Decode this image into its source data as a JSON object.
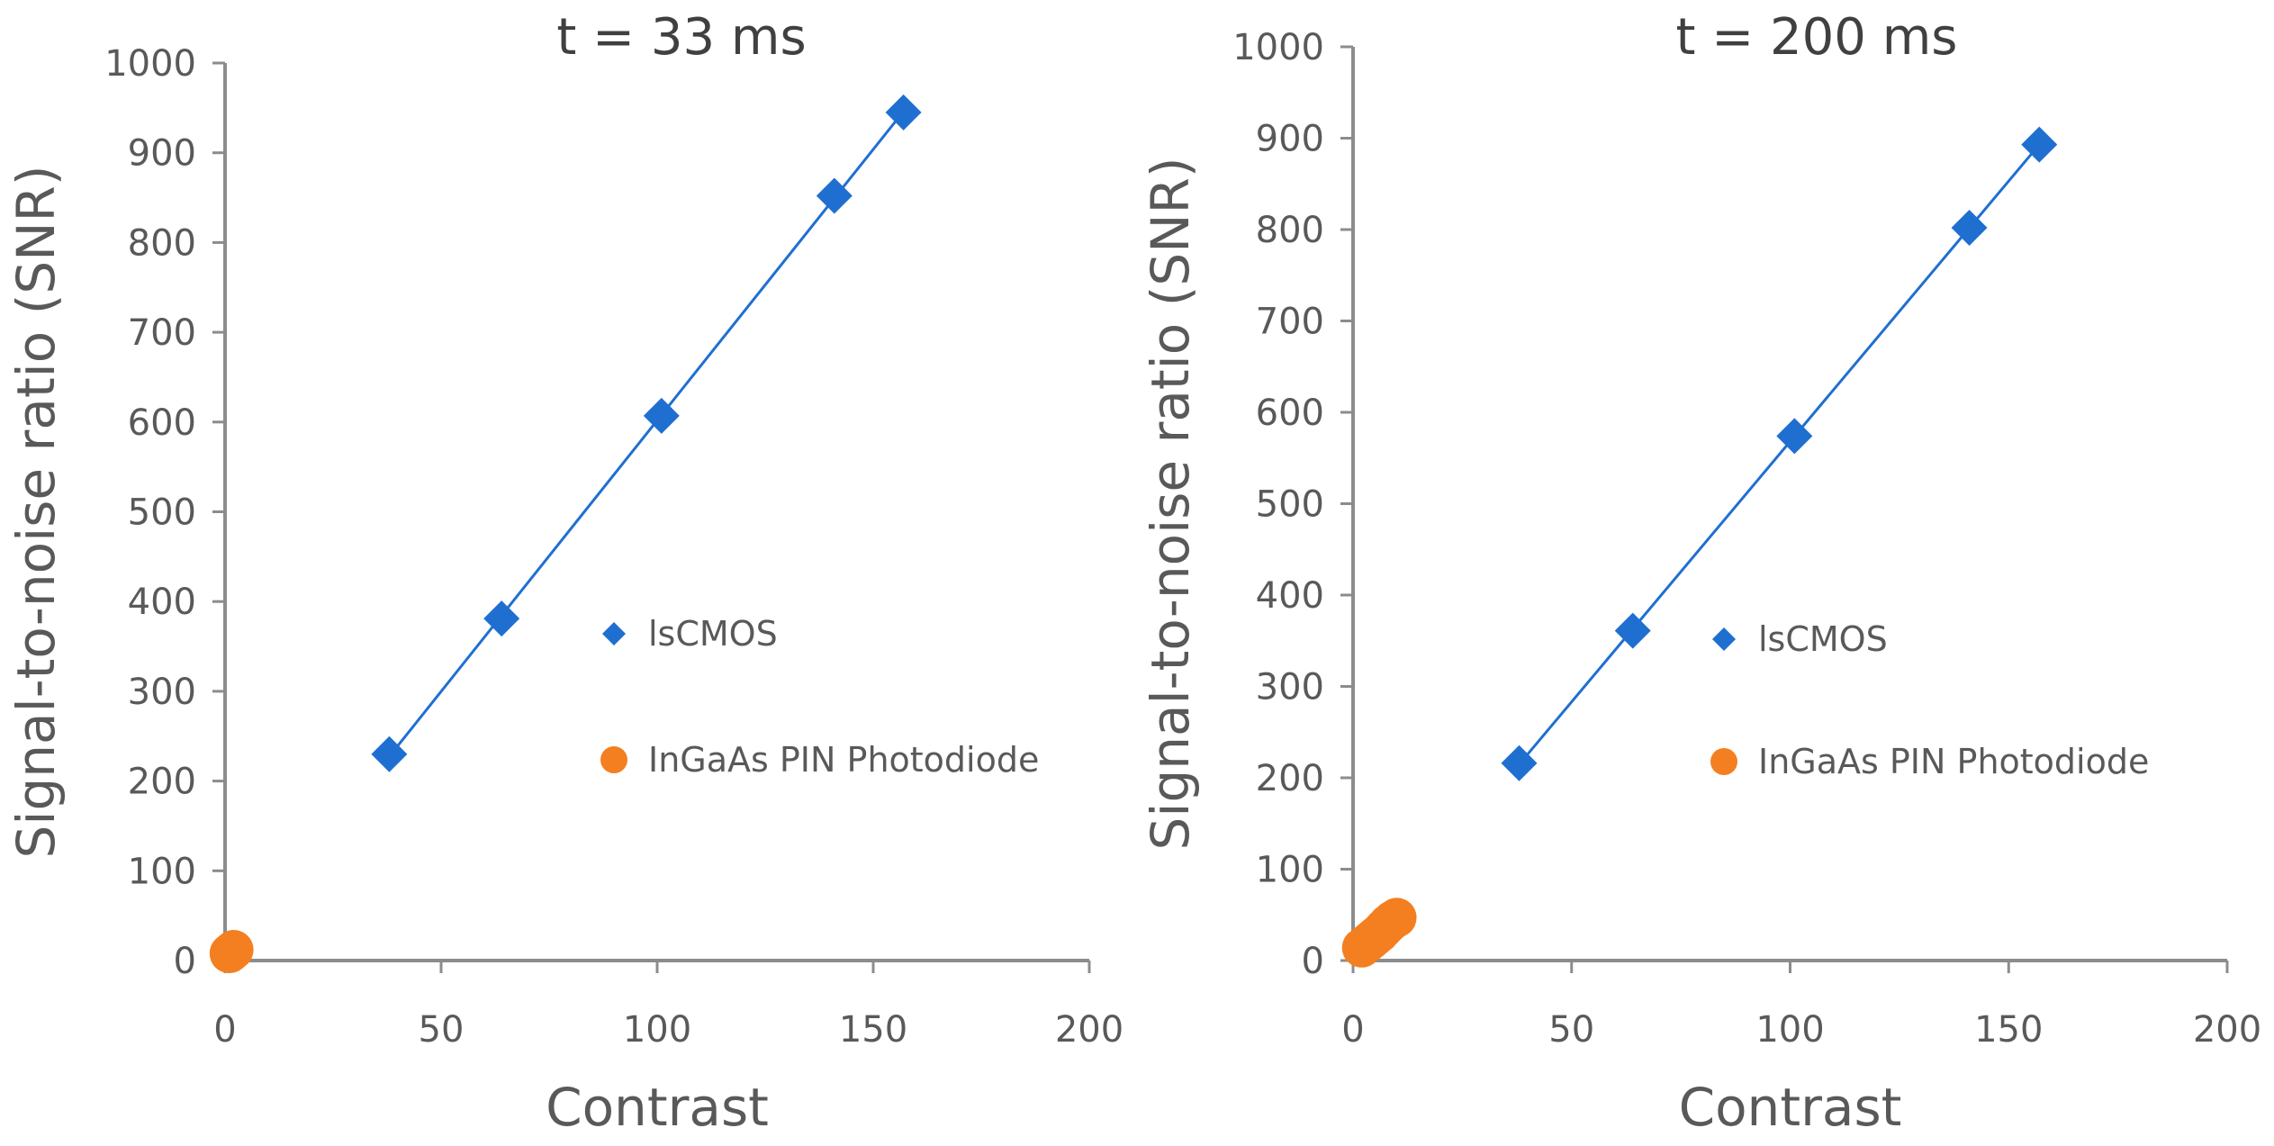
{
  "colors": {
    "iscmos": "#1F6FD1",
    "ingaas": "#F47F20",
    "axis": "#8C8C8C",
    "text": "#595959"
  },
  "chart_data": [
    {
      "type": "scatter",
      "title": "t = 33 ms",
      "xlabel": "Contrast",
      "ylabel": "Signal-to-noise ratio (SNR)",
      "xlim": [
        0,
        200
      ],
      "ylim": [
        0,
        1000
      ],
      "xticks": [
        0,
        50,
        100,
        150,
        200
      ],
      "yticks": [
        0,
        100,
        200,
        300,
        400,
        500,
        600,
        700,
        800,
        900,
        1000
      ],
      "grid": false,
      "legend_position": "center-right",
      "series": [
        {
          "name": "lsCMOS",
          "marker": "diamond",
          "trendline": true,
          "x": [
            38,
            64,
            101,
            141,
            157
          ],
          "y": [
            230,
            381,
            607,
            852,
            945
          ]
        },
        {
          "name": "InGaAs PIN Photodiode",
          "marker": "circle",
          "trendline": false,
          "x": [
            1,
            1.5,
            2
          ],
          "y": [
            8,
            10,
            12
          ]
        }
      ]
    },
    {
      "type": "scatter",
      "title": "t = 200 ms",
      "xlabel": "Contrast",
      "ylabel": "Signal-to-noise ratio (SNR)",
      "xlim": [
        0,
        200
      ],
      "ylim": [
        0,
        1000
      ],
      "xticks": [
        0,
        50,
        100,
        150,
        200
      ],
      "yticks": [
        0,
        100,
        200,
        300,
        400,
        500,
        600,
        700,
        800,
        900,
        1000
      ],
      "grid": false,
      "legend_position": "center-right",
      "series": [
        {
          "name": "lsCMOS",
          "marker": "diamond",
          "trendline": true,
          "x": [
            38,
            64,
            101,
            141,
            157
          ],
          "y": [
            216,
            361,
            574,
            802,
            893
          ]
        },
        {
          "name": "InGaAs PIN Photodiode",
          "marker": "circle",
          "trendline": false,
          "x": [
            2,
            3,
            4,
            5,
            6,
            7,
            8,
            9,
            10
          ],
          "y": [
            14,
            18,
            22,
            26,
            30,
            35,
            40,
            44,
            47
          ]
        }
      ]
    }
  ]
}
